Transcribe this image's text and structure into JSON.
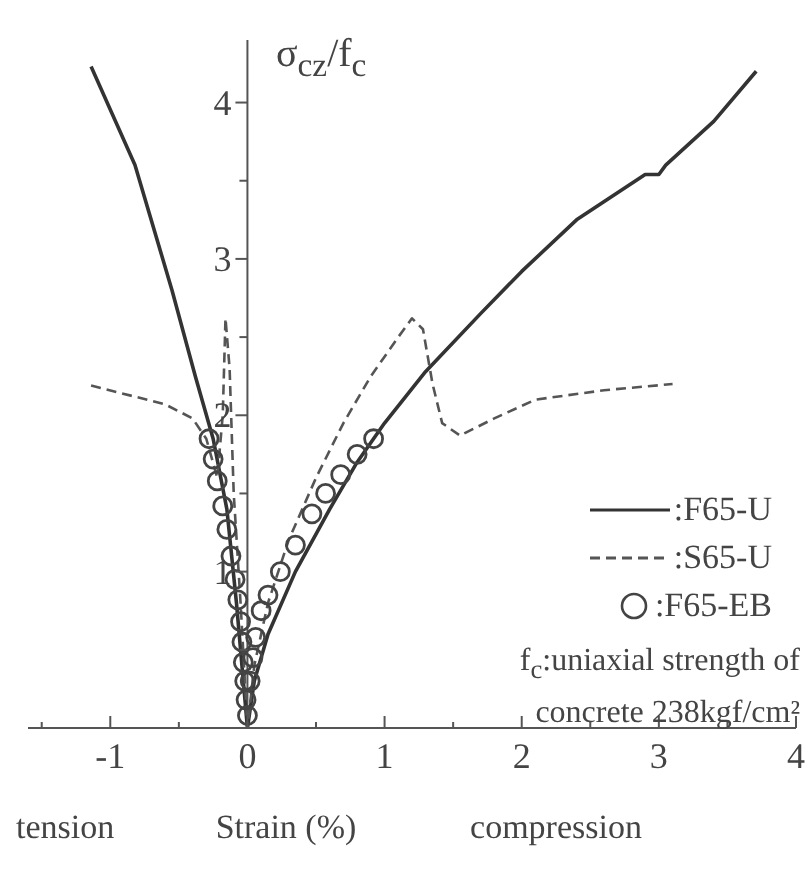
{
  "chart_data": {
    "type": "line",
    "xlabel": "Strain (%)",
    "ylabel": "σ$_{cz}$/f$_{c}$",
    "xlim": [
      -1.6,
      4
    ],
    "ylim": [
      0,
      4.4
    ],
    "xticks": [
      {
        "value": -1.5,
        "label": null
      },
      -1,
      {
        "value": -0.5,
        "label": null
      },
      0,
      {
        "value": 0.5,
        "label": null
      },
      1,
      {
        "value": 1.5,
        "label": null
      },
      2,
      {
        "value": 2.5,
        "label": null
      },
      3,
      {
        "value": 3.5,
        "label": null
      },
      4
    ],
    "yticks": [
      {
        "value": 0,
        "label": null
      },
      {
        "value": 0.5,
        "label": null
      },
      1,
      {
        "value": 1.5,
        "label": null
      },
      2,
      {
        "value": 2.5,
        "label": null
      },
      3,
      {
        "value": 3.5,
        "label": null
      },
      4
    ],
    "legend": "right",
    "grid": false,
    "annotations": [
      "tension",
      "compression",
      "f$_{c}$:uniaxial strength of concrete 238kgf/cm²"
    ],
    "series": [
      {
        "name": ":F65-U",
        "type": "line",
        "line_style": "solid",
        "color": "#333333",
        "x": [
          -1.14,
          -0.82,
          -0.55,
          -0.38,
          -0.25,
          -0.15,
          -0.08,
          -0.03,
          0,
          0.05,
          0.15,
          0.35,
          0.6,
          0.8,
          1.0,
          1.3,
          1.7,
          2.0,
          2.4,
          2.9,
          3.0,
          3.05,
          3.4,
          3.71
        ],
        "values": [
          4.23,
          3.6,
          2.8,
          2.25,
          1.85,
          1.4,
          0.8,
          0.3,
          0,
          0.3,
          0.6,
          1.0,
          1.4,
          1.7,
          1.95,
          2.28,
          2.65,
          2.92,
          3.25,
          3.54,
          3.54,
          3.6,
          3.88,
          4.2
        ]
      },
      {
        "name": ":S65-U",
        "type": "line",
        "line_style": "dashed",
        "color": "#555555",
        "x": [
          -1.14,
          -0.6,
          -0.4,
          -0.3,
          -0.22,
          -0.18,
          -0.16,
          -0.13,
          -0.1,
          -0.05,
          0,
          0.05,
          0.15,
          0.3,
          0.5,
          0.7,
          0.9,
          1.1,
          1.2,
          1.28,
          1.35,
          1.42,
          1.55,
          1.8,
          2.1,
          2.6,
          3.1
        ],
        "values": [
          2.19,
          2.07,
          1.98,
          1.85,
          1.6,
          2.0,
          2.62,
          2.3,
          1.5,
          0.8,
          0,
          0.4,
          0.8,
          1.2,
          1.6,
          1.95,
          2.25,
          2.5,
          2.62,
          2.55,
          2.2,
          1.95,
          1.87,
          1.98,
          2.1,
          2.16,
          2.2
        ]
      },
      {
        "name": ":F65-EB",
        "type": "scatter",
        "marker": "circle",
        "color": "#444444",
        "x": [
          -0.28,
          -0.25,
          -0.22,
          -0.18,
          -0.15,
          -0.12,
          -0.09,
          -0.07,
          -0.05,
          -0.04,
          -0.03,
          -0.02,
          -0.01,
          0,
          0.02,
          0.04,
          0.06,
          0.1,
          0.15,
          0.24,
          0.35,
          0.47,
          0.57,
          0.68,
          0.8,
          0.92
        ],
        "values": [
          1.85,
          1.72,
          1.58,
          1.42,
          1.27,
          1.1,
          0.95,
          0.82,
          0.68,
          0.55,
          0.42,
          0.3,
          0.18,
          0.08,
          0.3,
          0.45,
          0.58,
          0.75,
          0.85,
          1.0,
          1.17,
          1.37,
          1.5,
          1.62,
          1.75,
          1.85
        ]
      }
    ]
  }
}
